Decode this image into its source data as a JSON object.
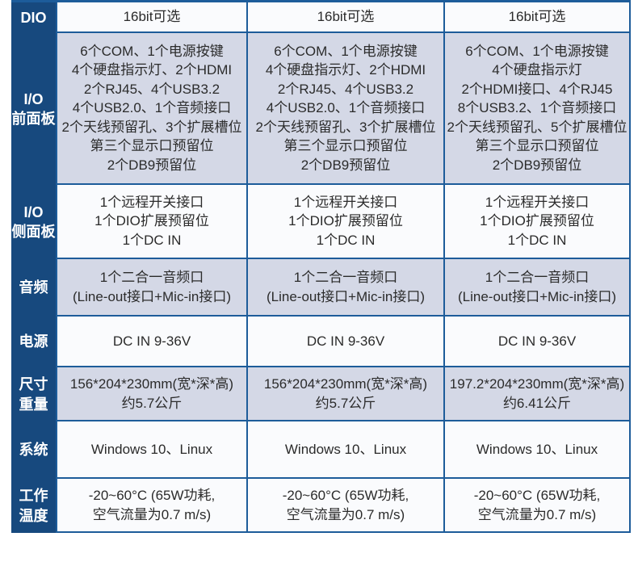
{
  "colors": {
    "header_bg": "#17497e",
    "header_text": "#ffffff",
    "border": "#1d5c9a",
    "row_light": "#fafbfd",
    "row_shaded": "#d4d8e6",
    "cell_text": "#2b2b2b"
  },
  "table": {
    "rows": [
      {
        "label": "DIO",
        "cells": [
          "16bit可选",
          "16bit可选",
          "16bit可选"
        ]
      },
      {
        "label": "I/O\n前面板",
        "cells": [
          "6个COM、1个电源按键\n4个硬盘指示灯、2个HDMI\n2个RJ45、4个USB3.2\n4个USB2.0、1个音频接口\n2个天线预留孔、3个扩展槽位\n第三个显示口预留位\n2个DB9预留位",
          "6个COM、1个电源按键\n4个硬盘指示灯、2个HDMI\n2个RJ45、4个USB3.2\n4个USB2.0、1个音频接口\n2个天线预留孔、3个扩展槽位\n第三个显示口预留位\n2个DB9预留位",
          "6个COM、1个电源按键\n4个硬盘指示灯\n2个HDMI接口、4个RJ45\n8个USB3.2、1个音频接口\n2个天线预留孔、5个扩展槽位\n第三个显示口预留位\n2个DB9预留位"
        ]
      },
      {
        "label": "I/O\n侧面板",
        "cells": [
          "1个远程开关接口\n1个DIO扩展预留位\n1个DC IN",
          "1个远程开关接口\n1个DIO扩展预留位\n1个DC IN",
          "1个远程开关接口\n1个DIO扩展预留位\n1个DC IN"
        ]
      },
      {
        "label": "音频",
        "cells": [
          "1个二合一音频口\n(Line-out接口+Mic-in接口)",
          "1个二合一音频口\n(Line-out接口+Mic-in接口)",
          "1个二合一音频口\n(Line-out接口+Mic-in接口)"
        ]
      },
      {
        "label": "电源",
        "cells": [
          "DC IN 9-36V",
          "DC IN 9-36V",
          "DC IN 9-36V"
        ]
      },
      {
        "label": "尺寸\n重量",
        "cells": [
          "156*204*230mm(宽*深*高)\n约5.7公斤",
          "156*204*230mm(宽*深*高)\n约5.7公斤",
          "197.2*204*230mm(宽*深*高)\n约6.41公斤"
        ]
      },
      {
        "label": "系统",
        "cells": [
          "Windows 10、Linux",
          "Windows 10、Linux",
          "Windows 10、Linux"
        ]
      },
      {
        "label": "工作\n温度",
        "cells": [
          "-20~60°C (65W功耗,\n空气流量为0.7 m/s)",
          "-20~60°C (65W功耗,\n空气流量为0.7 m/s)",
          "-20~60°C (65W功耗,\n空气流量为0.7 m/s)"
        ]
      }
    ]
  }
}
